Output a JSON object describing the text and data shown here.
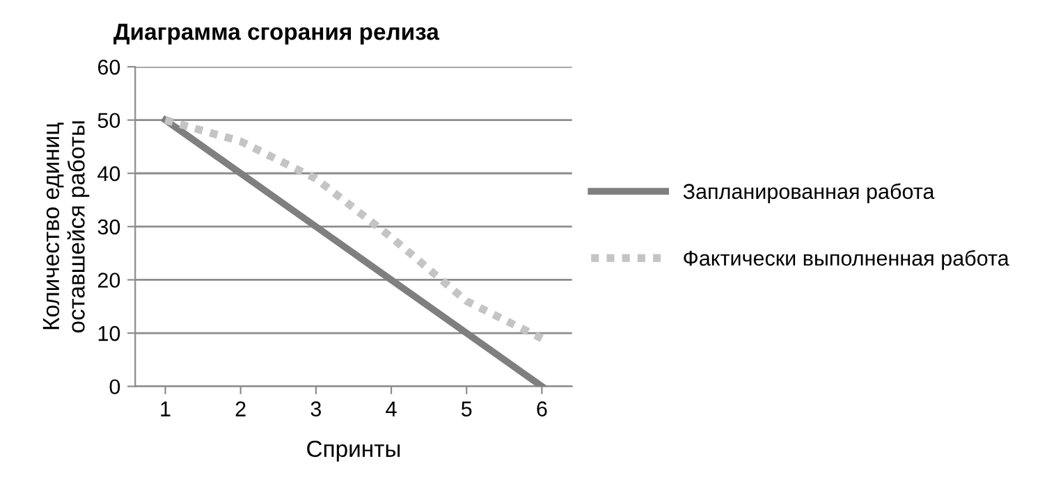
{
  "chart_data": {
    "type": "line",
    "title": "Диаграмма сгорания релиза",
    "xlabel": "Спринты",
    "ylabel": "Количество единиц\nоставшейся работы",
    "categories": [
      "1",
      "2",
      "3",
      "4",
      "5",
      "6"
    ],
    "series": [
      {
        "name": "Запланированная работа",
        "color": "#7f7f7f",
        "values": [
          50,
          40,
          30,
          20,
          10,
          0
        ],
        "line_style": "solid"
      },
      {
        "name": "Фактически выполненная работа",
        "color": "#c4c4c4",
        "values": [
          50,
          46,
          39,
          28,
          16,
          9
        ],
        "line_style": "dotted"
      }
    ],
    "ylim": [
      0,
      60
    ],
    "yticks": [
      0,
      10,
      20,
      30,
      40,
      50,
      60
    ],
    "grid": "y",
    "legend": "right",
    "marker": "none"
  }
}
